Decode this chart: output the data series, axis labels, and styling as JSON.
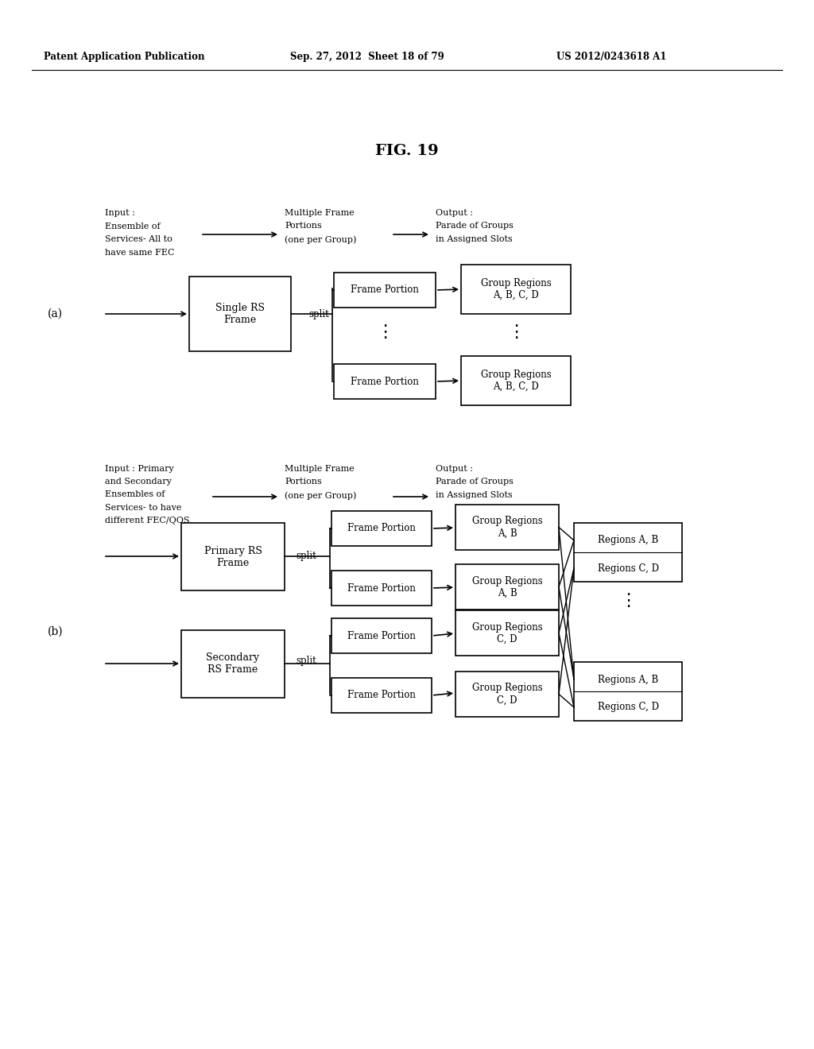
{
  "header_left": "Patent Application Publication",
  "header_mid": "Sep. 27, 2012  Sheet 18 of 79",
  "header_right": "US 2012/0243618 A1",
  "fig_title": "FIG. 19",
  "bg_color": "#ffffff",
  "text_color": "#000000"
}
